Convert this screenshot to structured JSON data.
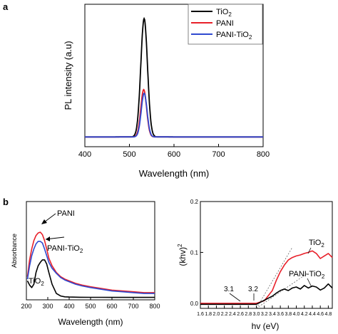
{
  "panel_labels": {
    "a": "a",
    "b": "b"
  },
  "colors": {
    "tio2": "#000000",
    "pani": "#e8202a",
    "pani_tio2": "#2f49d0",
    "axis": "#000000",
    "guide": "#555555"
  },
  "chart_data": [
    {
      "id": "a",
      "type": "line",
      "title": "",
      "xlabel": "Wavelength (nm)",
      "ylabel": "PL intensity (a.u)",
      "xlim": [
        400,
        800
      ],
      "x_ticks": [
        "400",
        "500",
        "600",
        "700",
        "800"
      ],
      "y_ticks": [],
      "legend": {
        "placement": "top-right",
        "entries": [
          "TiO",
          "PANI",
          "PANI-TiO"
        ],
        "subscripts": [
          "2",
          "",
          "2"
        ]
      },
      "series": [
        {
          "name": "TiO2",
          "color_key": "tio2",
          "baseline": 0.05,
          "peak_x": 533,
          "peak_y": 1.0,
          "width_sigma": 7.5
        },
        {
          "name": "PANI",
          "color_key": "pani",
          "baseline": 0.05,
          "peak_x": 532,
          "peak_y": 0.43,
          "width_sigma": 6.5
        },
        {
          "name": "PANI-TiO2",
          "color_key": "pani_tio2",
          "baseline": 0.05,
          "peak_x": 533,
          "peak_y": 0.4,
          "width_sigma": 6.5
        }
      ]
    },
    {
      "id": "b-left",
      "type": "line",
      "title": "",
      "xlabel": "Wavelength (nm)",
      "ylabel": "Absorbance",
      "xlim": [
        200,
        800
      ],
      "x_ticks": [
        "200",
        "300",
        "400",
        "500",
        "600",
        "700",
        "800"
      ],
      "y_ticks": [],
      "annotations": [
        {
          "text": "PANI",
          "sub": ""
        },
        {
          "text": "PANI-TiO",
          "sub": "2"
        },
        {
          "text": "TiO",
          "sub": "2"
        }
      ],
      "series": [
        {
          "name": "PANI",
          "color_key": "pani",
          "x": [
            205,
            215,
            225,
            235,
            245,
            255,
            265,
            275,
            285,
            295,
            305,
            320,
            340,
            360,
            380,
            400,
            430,
            460,
            500,
            550,
            600,
            650,
            700,
            750,
            800
          ],
          "y": [
            0.25,
            0.45,
            0.58,
            0.68,
            0.74,
            0.77,
            0.78,
            0.75,
            0.68,
            0.58,
            0.47,
            0.38,
            0.3,
            0.25,
            0.22,
            0.2,
            0.17,
            0.15,
            0.13,
            0.11,
            0.09,
            0.08,
            0.07,
            0.06,
            0.06
          ]
        },
        {
          "name": "PANI-TiO2",
          "color_key": "pani_tio2",
          "x": [
            205,
            215,
            225,
            235,
            245,
            255,
            265,
            275,
            285,
            295,
            305,
            320,
            340,
            360,
            380,
            400,
            430,
            460,
            500,
            550,
            600,
            650,
            700,
            750,
            800
          ],
          "y": [
            0.22,
            0.38,
            0.5,
            0.58,
            0.64,
            0.67,
            0.67,
            0.65,
            0.58,
            0.5,
            0.42,
            0.35,
            0.29,
            0.24,
            0.21,
            0.19,
            0.16,
            0.14,
            0.12,
            0.1,
            0.08,
            0.07,
            0.06,
            0.05,
            0.05
          ]
        },
        {
          "name": "TiO2",
          "color_key": "tio2",
          "x": [
            205,
            215,
            225,
            235,
            245,
            255,
            265,
            275,
            285,
            295,
            305,
            320,
            340,
            360,
            380,
            400,
            450,
            500,
            550,
            600,
            650,
            700,
            750,
            800
          ],
          "y": [
            0.2,
            0.15,
            0.12,
            0.16,
            0.3,
            0.38,
            0.42,
            0.45,
            0.45,
            0.4,
            0.3,
            0.16,
            0.05,
            0.02,
            0.01,
            0.008,
            0.005,
            0.004,
            0.004,
            0.003,
            0.003,
            0.003,
            0.003,
            0.003
          ]
        }
      ]
    },
    {
      "id": "b-right",
      "type": "line",
      "title": "",
      "xlabel": "hv (eV)",
      "ylabel": "(khv)",
      "ylabel_sup": "2",
      "xlim": [
        1.6,
        4.9
      ],
      "ylim": [
        -0.01,
        0.2
      ],
      "x_ticks": [
        "1.6",
        "1.8",
        "2.0",
        "2.2",
        "2.4",
        "2.6",
        "2.8",
        "3.0",
        "3.2",
        "3.4",
        "3.6",
        "3.8",
        "4.0",
        "4.2",
        "4.4",
        "4.6",
        "4.8"
      ],
      "y_ticks": [
        "0.0",
        "0.1",
        "0.2"
      ],
      "annotations": [
        {
          "text": "3.1",
          "sub": ""
        },
        {
          "text": "3.2",
          "sub": ""
        },
        {
          "text": "TiO",
          "sub": "2"
        },
        {
          "text": "PANI-TiO",
          "sub": "2"
        }
      ],
      "series": [
        {
          "name": "TiO2",
          "color_key": "pani",
          "x": [
            1.6,
            3.0,
            3.2,
            3.4,
            3.5,
            3.6,
            3.7,
            3.8,
            3.9,
            4.0,
            4.1,
            4.2,
            4.3,
            4.4,
            4.5,
            4.6,
            4.7,
            4.8,
            4.9
          ],
          "y": [
            0.0,
            0.0,
            0.005,
            0.025,
            0.045,
            0.062,
            0.075,
            0.085,
            0.09,
            0.093,
            0.095,
            0.098,
            0.1,
            0.103,
            0.098,
            0.088,
            0.093,
            0.098,
            0.09
          ]
        },
        {
          "name": "PANI-TiO2",
          "color_key": "tio2",
          "x": [
            1.6,
            3.0,
            3.1,
            3.2,
            3.3,
            3.4,
            3.5,
            3.6,
            3.7,
            3.8,
            3.9,
            4.0,
            4.1,
            4.2,
            4.3,
            4.4,
            4.5,
            4.6,
            4.7,
            4.8,
            4.9
          ],
          "y": [
            -0.002,
            -0.002,
            0.002,
            0.006,
            0.01,
            0.014,
            0.02,
            0.025,
            0.028,
            0.025,
            0.03,
            0.032,
            0.028,
            0.035,
            0.03,
            0.034,
            0.032,
            0.026,
            0.03,
            0.038,
            0.03
          ]
        }
      ],
      "tangents": [
        {
          "x": [
            3.0,
            3.9
          ],
          "y": [
            -0.01,
            0.11
          ]
        },
        {
          "x": [
            3.0,
            4.3
          ],
          "y": [
            -0.01,
            0.06
          ]
        }
      ]
    }
  ]
}
